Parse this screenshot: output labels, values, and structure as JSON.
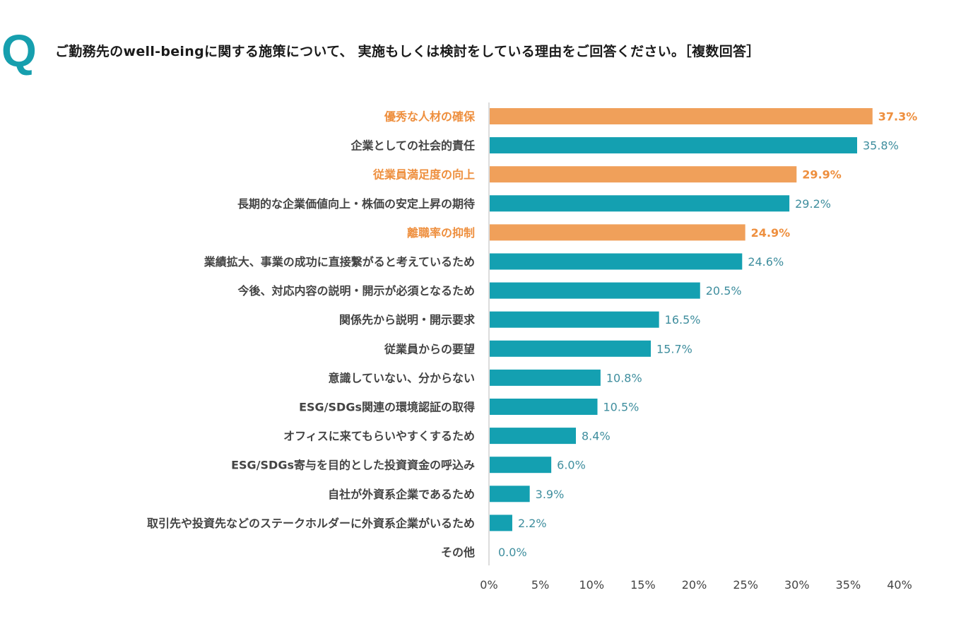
{
  "header": {
    "q_mark": "Q",
    "title": "ご勤務先のwell-beingに関する施策について、 実施もしくは検討をしている理由をご回答ください。［複数回答］"
  },
  "colors": {
    "highlight": "#f0a05a",
    "highlight_text": "#ee8f3e",
    "normal": "#14a0b1",
    "normal_value_text": "#3f8e9e",
    "label_text": "#444444",
    "axis": "#d0d0d0",
    "q_mark": "#169fae"
  },
  "chart_data": {
    "type": "bar",
    "orientation": "horizontal",
    "title": "ご勤務先のwell-beingに関する施策について、 実施もしくは検討をしている理由をご回答ください。［複数回答］",
    "xlabel": "",
    "ylabel": "",
    "xlim": [
      0,
      40
    ],
    "grid": false,
    "categories": [
      "優秀な人材の確保",
      "企業としての社会的責任",
      "従業員満足度の向上",
      "長期的な企業価値向上・株価の安定上昇の期待",
      "離職率の抑制",
      "業績拡大、事業の成功に直接繋がると考えているため",
      "今後、対応内容の説明・開示が必須となるため",
      "関係先から説明・開示要求",
      "従業員からの要望",
      "意識していない、分からない",
      "ESG/SDGs関連の環境認証の取得",
      "オフィスに来てもらいやすくするため",
      "ESG/SDGs寄与を目的とした投資資金の呼込み",
      "自社が外資系企業であるため",
      "取引先や投資先などのステークホルダーに外資系企業がいるため",
      "その他"
    ],
    "values": [
      37.3,
      35.8,
      29.9,
      29.2,
      24.9,
      24.6,
      20.5,
      16.5,
      15.7,
      10.8,
      10.5,
      8.4,
      6.0,
      3.9,
      2.2,
      0.0
    ],
    "value_labels": [
      "37.3%",
      "35.8%",
      "29.9%",
      "29.2%",
      "24.9%",
      "24.6%",
      "20.5%",
      "16.5%",
      "15.7%",
      "10.8%",
      "10.5%",
      "8.4%",
      "6.0%",
      "3.9%",
      "2.2%",
      "0.0%"
    ],
    "highlighted": [
      true,
      false,
      true,
      false,
      true,
      false,
      false,
      false,
      false,
      false,
      false,
      false,
      false,
      false,
      false,
      false
    ],
    "x_ticks": [
      0,
      5,
      10,
      15,
      20,
      25,
      30,
      35,
      40
    ],
    "x_tick_labels": [
      "0%",
      "5%",
      "10%",
      "15%",
      "20%",
      "25%",
      "30%",
      "35%",
      "40%"
    ]
  }
}
